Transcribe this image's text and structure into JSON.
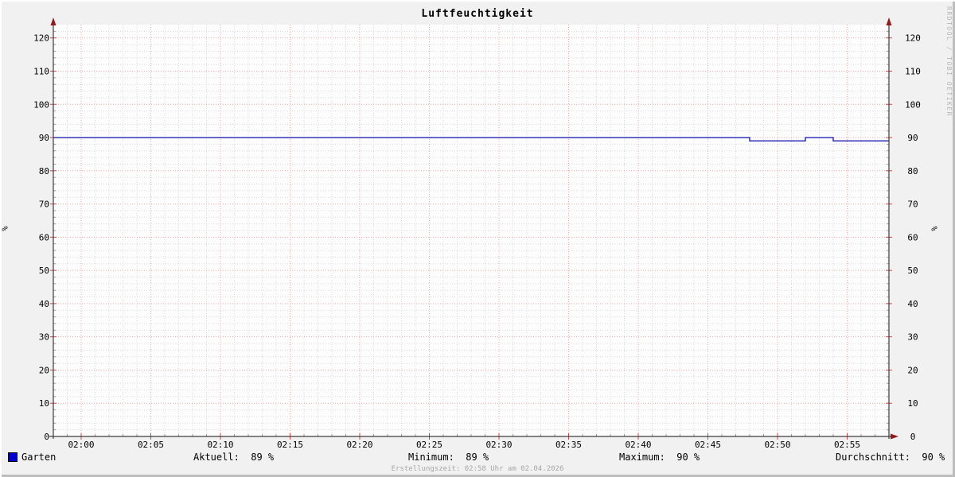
{
  "title": "Luftfeuchtigkeit",
  "watermark": "RRDTOOL / TOBI OETIKER",
  "footer": "Erstellungszeit: 02:58 Uhr am 02.04.2026",
  "legend": {
    "series_label": "Garten",
    "series_color": "#0000cc",
    "stats": [
      {
        "label": "Aktuell:",
        "value": "89 %",
        "text": "Aktuell:  89 %"
      },
      {
        "label": "Minimum:",
        "value": "89 %",
        "text": "Minimum:  89 %"
      },
      {
        "label": "Maximum:",
        "value": "90 %",
        "text": "Maximum:  90 %"
      },
      {
        "label": "Durchschnitt:",
        "value": "90 %",
        "text": "Durchschnitt:  90 %"
      }
    ]
  },
  "chart_data": {
    "type": "line",
    "title": "Luftfeuchtigkeit",
    "ylabel_left": "%",
    "ylabel_right": "%",
    "x_window": {
      "start": "01:58",
      "end": "02:58"
    },
    "x_major_ticks": [
      "02:00",
      "02:05",
      "02:10",
      "02:15",
      "02:20",
      "02:25",
      "02:30",
      "02:35",
      "02:40",
      "02:45",
      "02:50",
      "02:55"
    ],
    "x_minor_step_min": 1,
    "y_major_ticks": [
      0,
      10,
      20,
      30,
      40,
      50,
      60,
      70,
      80,
      90,
      100,
      110,
      120
    ],
    "y_minor_step": 2,
    "ylim": [
      0,
      124
    ],
    "grid": {
      "major_color": "#f0a8a8",
      "minor_color": "#dadada",
      "axis_color": "#3c3c3c",
      "arrow_color": "#8f1d1d",
      "tick_major_color": "#c74a4a",
      "tick_minor_color": "#9a9a9a",
      "canvas_color": "#fdfdfd"
    },
    "series": [
      {
        "name": "Garten",
        "color": "#2222b2",
        "points": [
          [
            "01:58",
            90
          ],
          [
            "02:48",
            90
          ],
          [
            "02:48",
            89
          ],
          [
            "02:52",
            89
          ],
          [
            "02:52",
            90
          ],
          [
            "02:54",
            90
          ],
          [
            "02:54",
            89
          ],
          [
            "02:58",
            89
          ]
        ]
      }
    ],
    "legend_position": "bottom"
  }
}
